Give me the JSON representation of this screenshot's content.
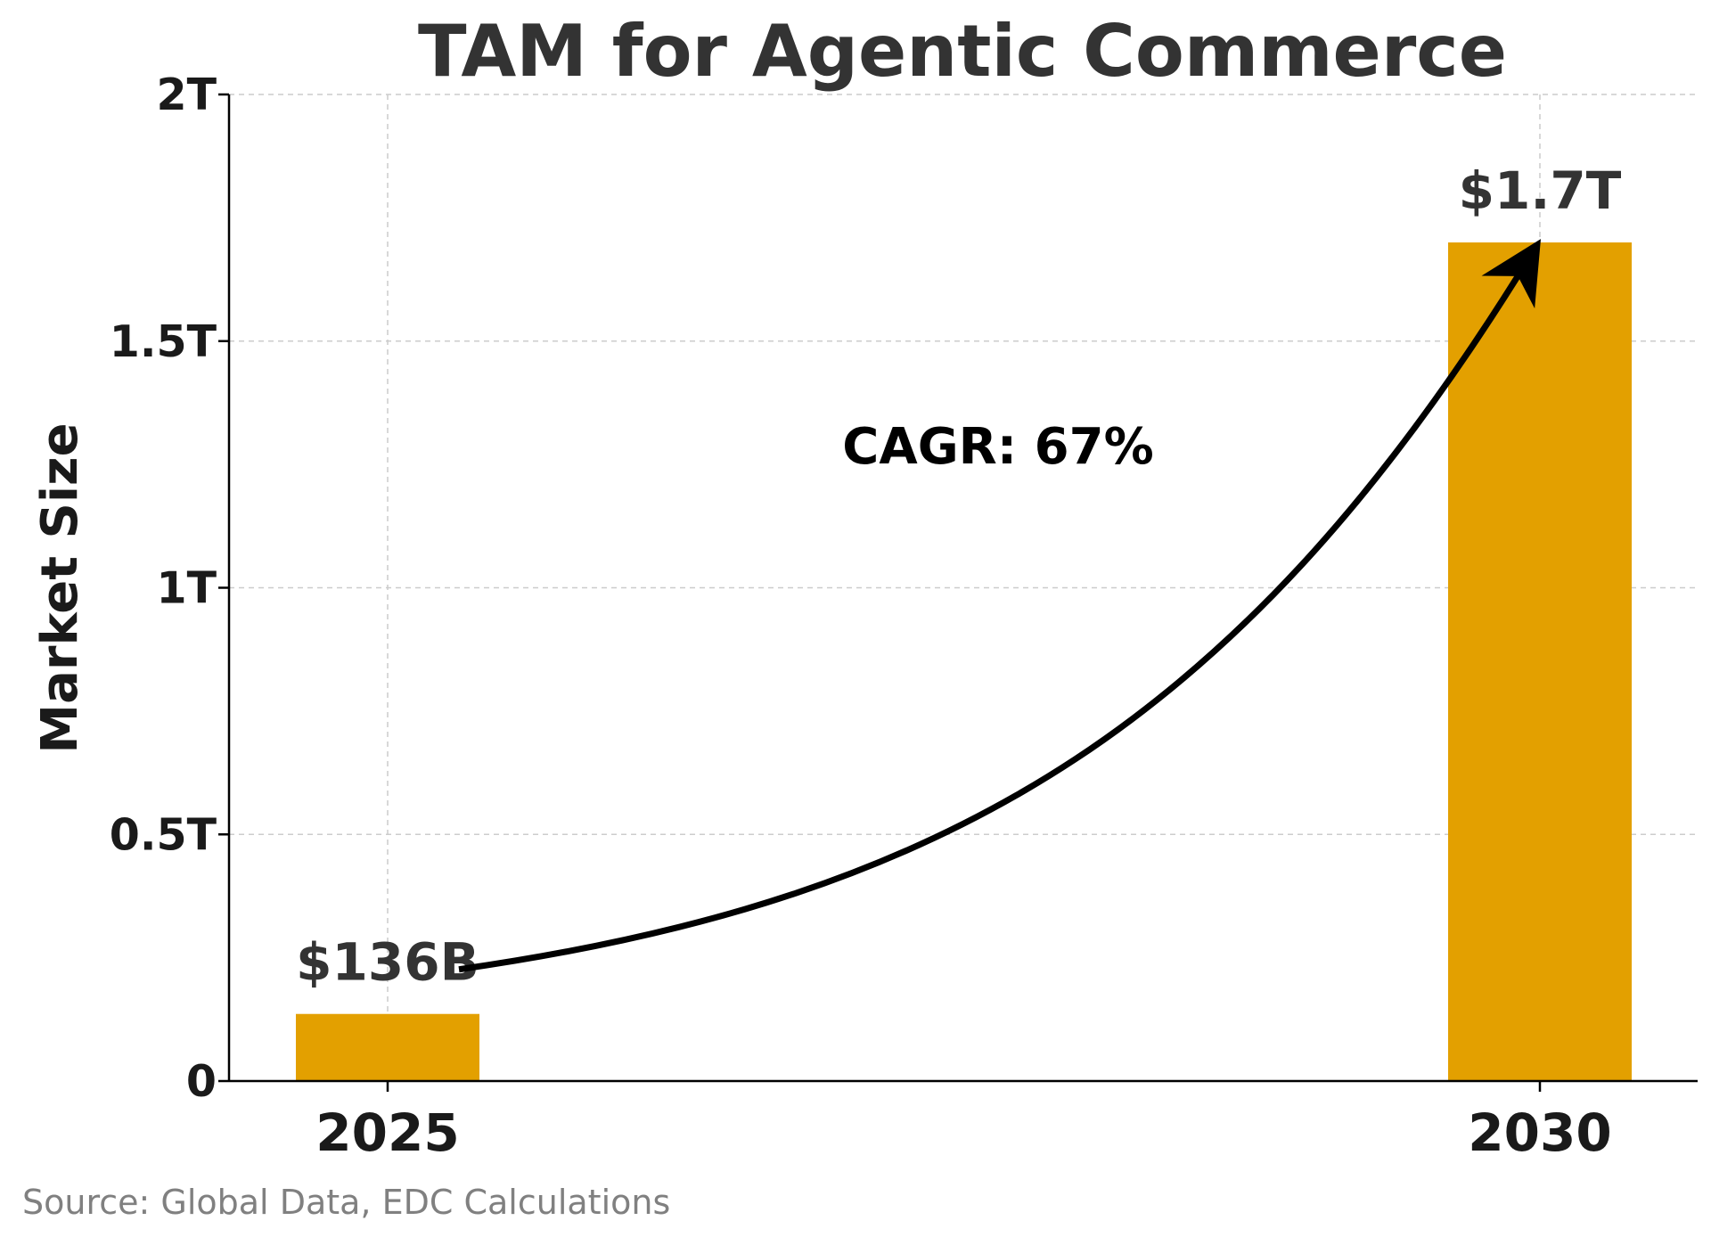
{
  "chart_data": {
    "type": "bar",
    "title": "TAM for Agentic Commerce",
    "xlabel": "",
    "ylabel": "Market Size",
    "categories": [
      "2025",
      "2030"
    ],
    "values": [
      0.136,
      1.7
    ],
    "data_labels": [
      "$136B",
      "$1.7T"
    ],
    "ylim": [
      0,
      2
    ],
    "yticks": [
      0,
      0.5,
      1,
      1.5,
      2
    ],
    "ytick_labels": [
      "0",
      "0.5T",
      "1T",
      "1.5T",
      "2T"
    ],
    "grid": true,
    "bar_color": "#E3A000",
    "annotation": {
      "text": "CAGR: 67%",
      "arrow_from": "2025",
      "arrow_to": "2030"
    }
  },
  "footer": {
    "source": "Source: Global Data, EDC Calculations"
  }
}
